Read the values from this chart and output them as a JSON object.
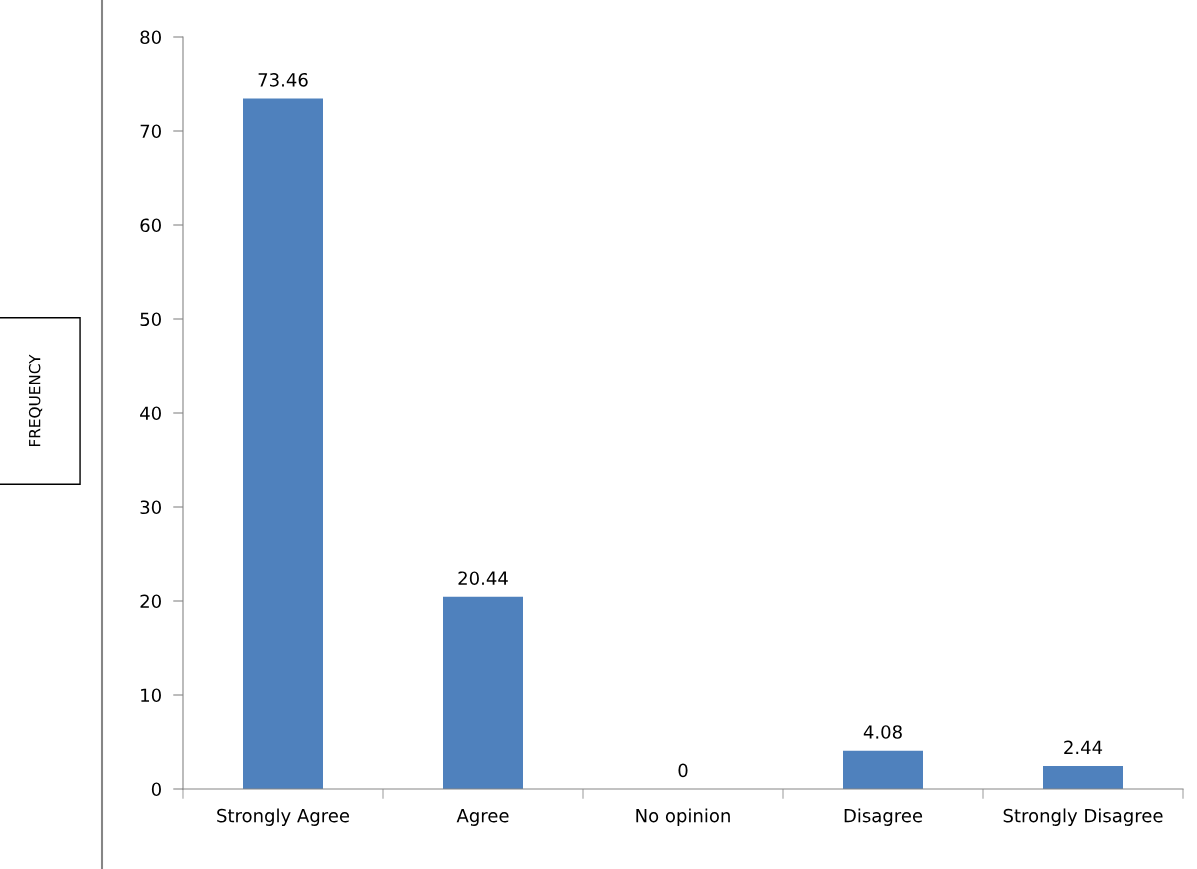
{
  "chart_data": {
    "type": "bar",
    "annotations": [
      "FREQUENCY"
    ],
    "categories": [
      "Strongly Agree",
      "Agree",
      "No opinion",
      "Disagree",
      "Strongly Disagree"
    ],
    "values": [
      73.46,
      20.44,
      0,
      4.08,
      2.44
    ],
    "color": "#4f81bd",
    "ylim": [
      0,
      80
    ],
    "yticks": [
      0,
      10,
      20,
      30,
      40,
      50,
      60,
      70,
      80
    ],
    "data_labels": true,
    "grid": false,
    "legend": false
  }
}
